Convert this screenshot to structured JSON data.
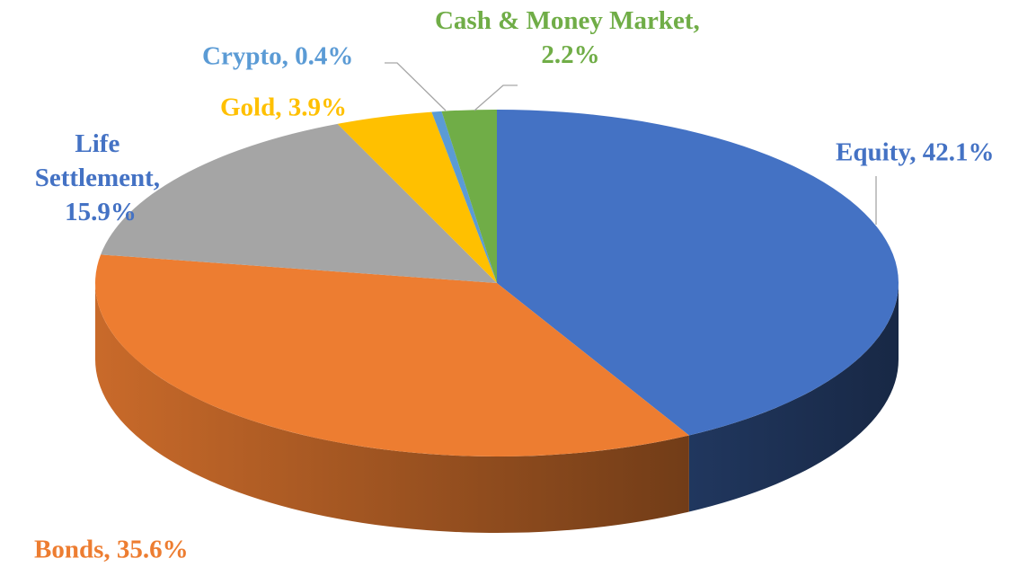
{
  "chart_data": {
    "type": "pie3d",
    "values": [
      42.1,
      35.6,
      15.9,
      3.9,
      0.4,
      2.2
    ],
    "value_labels": [
      "Equity, 42.1%",
      "Bonds, 35.6%",
      "Life Settlement, 15.9%",
      "Gold, 3.9%",
      "Crypto, 0.4%",
      "Cash & Money Market, 2.2%"
    ],
    "colors": [
      "#4472c4",
      "#ed7d31",
      "#a5a5a5",
      "#ffc000",
      "#5b9bd5",
      "#70ad47"
    ],
    "label_colors": [
      "#4472c4",
      "#ed7d31",
      "#4472c4",
      "#ffc000",
      "#5b9bd5",
      "#70ad47"
    ]
  }
}
